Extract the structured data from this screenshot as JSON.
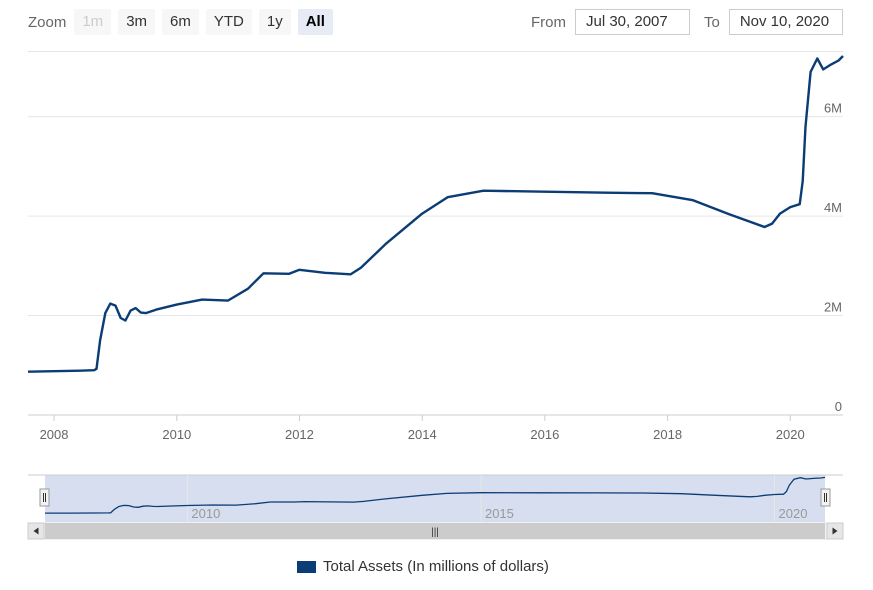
{
  "toolbar": {
    "zoom_label": "Zoom",
    "buttons": [
      {
        "label": "1m",
        "state": "disabled"
      },
      {
        "label": "3m",
        "state": "normal"
      },
      {
        "label": "6m",
        "state": "normal"
      },
      {
        "label": "YTD",
        "state": "normal"
      },
      {
        "label": "1y",
        "state": "normal"
      },
      {
        "label": "All",
        "state": "active"
      }
    ],
    "from_label": "From",
    "from_value": "Jul 30, 2007",
    "to_label": "To",
    "to_value": "Nov 10, 2020"
  },
  "navigator": {
    "labels": [
      "2010",
      "2015",
      "2020"
    ],
    "scrollbar_grip": "|||"
  },
  "colors": {
    "series": "#0b3c75",
    "navigator_mask": "#ccd6eb",
    "grid": "#e6e6e6"
  },
  "chart_data": {
    "type": "line",
    "title": "",
    "xlabel": "",
    "ylabel": "",
    "x_ticks": [
      "2008",
      "2010",
      "2012",
      "2014",
      "2016",
      "2018",
      "2020"
    ],
    "y_ticks": [
      "0",
      "2M",
      "4M",
      "6M"
    ],
    "xlim": [
      "2007-07-30",
      "2020-11-10"
    ],
    "ylim": [
      0,
      7300000
    ],
    "grid": true,
    "legend": "bottom-center",
    "series": [
      {
        "name": "Total Assets (In millions of dollars)",
        "color": "#0b3c75",
        "points": [
          [
            "2007-07-30",
            870000
          ],
          [
            "2008-01-01",
            880000
          ],
          [
            "2008-06-01",
            890000
          ],
          [
            "2008-08-27",
            900000
          ],
          [
            "2008-09-10",
            930000
          ],
          [
            "2008-10-01",
            1500000
          ],
          [
            "2008-11-01",
            2050000
          ],
          [
            "2008-12-01",
            2240000
          ],
          [
            "2009-01-01",
            2200000
          ],
          [
            "2009-02-01",
            1950000
          ],
          [
            "2009-03-01",
            1900000
          ],
          [
            "2009-04-01",
            2100000
          ],
          [
            "2009-05-01",
            2150000
          ],
          [
            "2009-06-01",
            2060000
          ],
          [
            "2009-07-01",
            2050000
          ],
          [
            "2009-09-01",
            2120000
          ],
          [
            "2010-01-01",
            2220000
          ],
          [
            "2010-06-01",
            2320000
          ],
          [
            "2010-11-01",
            2300000
          ],
          [
            "2011-03-01",
            2540000
          ],
          [
            "2011-06-01",
            2850000
          ],
          [
            "2011-11-01",
            2840000
          ],
          [
            "2012-01-01",
            2920000
          ],
          [
            "2012-06-01",
            2860000
          ],
          [
            "2012-11-01",
            2830000
          ],
          [
            "2013-01-01",
            2960000
          ],
          [
            "2013-06-01",
            3450000
          ],
          [
            "2014-01-01",
            4050000
          ],
          [
            "2014-06-01",
            4380000
          ],
          [
            "2015-01-01",
            4510000
          ],
          [
            "2016-01-01",
            4490000
          ],
          [
            "2017-01-01",
            4470000
          ],
          [
            "2017-10-01",
            4460000
          ],
          [
            "2018-06-01",
            4320000
          ],
          [
            "2019-01-01",
            4040000
          ],
          [
            "2019-08-01",
            3780000
          ],
          [
            "2019-09-15",
            3850000
          ],
          [
            "2019-11-01",
            4050000
          ],
          [
            "2020-01-01",
            4180000
          ],
          [
            "2020-02-26",
            4240000
          ],
          [
            "2020-03-15",
            4700000
          ],
          [
            "2020-04-01",
            5800000
          ],
          [
            "2020-05-01",
            6900000
          ],
          [
            "2020-06-10",
            7170000
          ],
          [
            "2020-07-15",
            6950000
          ],
          [
            "2020-09-01",
            7050000
          ],
          [
            "2020-10-15",
            7130000
          ],
          [
            "2020-11-10",
            7220000
          ]
        ]
      }
    ]
  }
}
